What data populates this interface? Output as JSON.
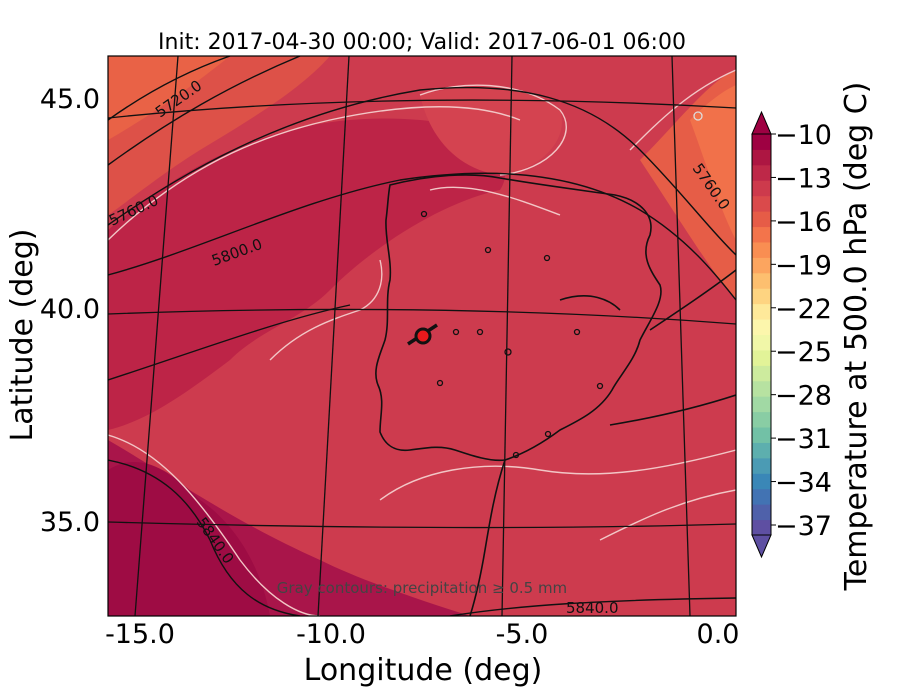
{
  "title": "Init: 2017-04-30 00:00; Valid: 2017-06-01 06:00",
  "xlabel": "Longitude (deg)",
  "ylabel": "Latitude (deg)",
  "x_ticks": [
    "-15.0",
    "-10.0",
    "-5.0",
    "0.0"
  ],
  "y_ticks": [
    "45.0",
    "40.0",
    "35.0"
  ],
  "colorbar": {
    "label": "Temperature at 500.0 hPa (deg C)",
    "ticks": [
      "−10",
      "−13",
      "−16",
      "−19",
      "−22",
      "−25",
      "−28",
      "−31",
      "−34",
      "−37"
    ],
    "colors": [
      "#5e4fa2",
      "#4f61aa",
      "#4273b3",
      "#3a87b7",
      "#4b9bb4",
      "#5dafae",
      "#72c1a6",
      "#89cda4",
      "#a1d9a4",
      "#b7e2a1",
      "#cdeb9e",
      "#e2f398",
      "#f1f7a8",
      "#fcf6ac",
      "#fee99a",
      "#fed481",
      "#fdbf6f",
      "#fca55f",
      "#f98e52",
      "#f3744b",
      "#e65c47",
      "#da4a4b",
      "#cd3a4c",
      "#be2848",
      "#ad1642",
      "#9e0142"
    ]
  },
  "contour_labels": [
    "5720.0",
    "5760.0",
    "5800.0",
    "5760.0",
    "5840.0",
    "5840.0"
  ],
  "note": "Gray contours: precipitation ≥ 0.5 mm",
  "marker": "station-marker"
}
